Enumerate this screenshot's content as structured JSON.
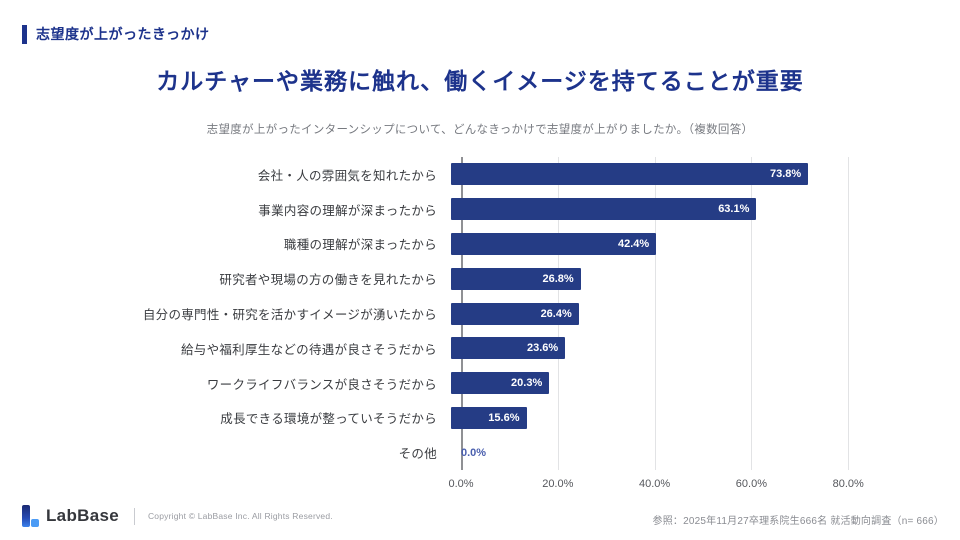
{
  "page": {
    "kicker": "志望度が上がったきっかけ",
    "title": "カルチャーや業務に触れ、働くイメージを持てることが重要",
    "subtitle": "志望度が上がったインターンシップについて、どんなきっかけで志望度が上がりましたか。（複数回答）"
  },
  "chart_data": {
    "type": "bar",
    "orientation": "horizontal",
    "title": "志望度が上がったきっかけ",
    "categories": [
      "会社・人の雰囲気を知れたから",
      "事業内容の理解が深まったから",
      "職種の理解が深まったから",
      "研究者や現場の方の働きを見れたから",
      "自分の専門性・研究を活かすイメージが湧いたから",
      "給与や福利厚生などの待遇が良さそうだから",
      "ワークライフバランスが良さそうだから",
      "成長できる環境が整っていそうだから",
      "その他"
    ],
    "values": [
      73.8,
      63.1,
      42.4,
      26.8,
      26.4,
      23.6,
      20.3,
      15.6,
      0.0
    ],
    "value_labels": [
      "73.8%",
      "63.1%",
      "42.4%",
      "26.8%",
      "26.4%",
      "23.6%",
      "20.3%",
      "15.6%",
      "0.0%"
    ],
    "x_ticks": [
      "0.0%",
      "20.0%",
      "40.0%",
      "60.0%",
      "80.0%"
    ],
    "x_tick_values": [
      0,
      20,
      40,
      60,
      80
    ],
    "xlim": [
      0,
      82
    ],
    "grid": true,
    "legend": false,
    "bar_color": "#253c85",
    "value_label_color_inside": "#ffffff",
    "value_label_color_zero": "#4a5fae"
  },
  "footer": {
    "logo_text": "LabBase",
    "copyright": "Copyright ©  LabBase Inc. All Rights Reserved.",
    "source": "参照：2025年11月27卒理系院生666名 就活動向調査（n= 666）"
  }
}
